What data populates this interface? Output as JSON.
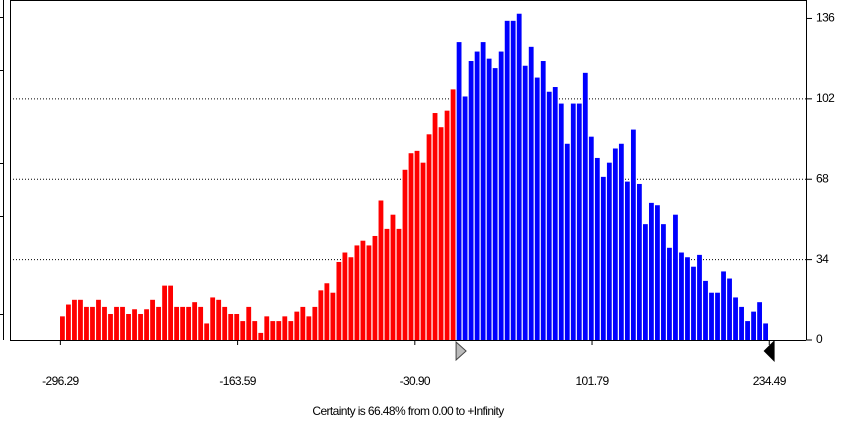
{
  "chart_data": {
    "type": "histogram",
    "caption": "Certainty is 66.48% from 0.00 to +Infinity",
    "certainty_from": 0,
    "colors": [
      "#ff0000",
      "#0000ff"
    ],
    "bins": [
      -297,
      -292.5,
      -288,
      -283.5,
      -279,
      -274.5,
      -270,
      -265.5,
      -261,
      -256.5,
      -252,
      -247.5,
      -243,
      -238.5,
      -234,
      -229.5,
      -225,
      -220.5,
      -216,
      -211.5,
      -207,
      -202.5,
      -198,
      -193.5,
      -189,
      -184.5,
      -180,
      -175.5,
      -171,
      -166.5,
      -162,
      -157.5,
      -153,
      -148.5,
      -144,
      -139.5,
      -135,
      -130.5,
      -126,
      -121.5,
      -117,
      -112.5,
      -108,
      -103.5,
      -99,
      -94.5,
      -90,
      -85.5,
      -81,
      -76.5,
      -72,
      -67.5,
      -63,
      -58.5,
      -54,
      -49.5,
      -45,
      -40.5,
      -36,
      -31.5,
      -27,
      -22.5,
      -18,
      -13.5,
      -9,
      -4.5,
      0,
      4.5,
      9,
      13.5,
      18,
      22.5,
      27,
      31.5,
      36,
      40.5,
      45,
      49.5,
      54,
      58.5,
      63,
      67.5,
      72,
      76.5,
      81,
      85.5,
      90,
      94.5,
      99,
      103.5,
      108,
      112.5,
      117,
      121.5,
      126,
      130.5,
      135,
      139.5,
      144,
      148.5,
      153,
      157.5,
      162,
      166.5,
      171,
      175.5,
      180,
      184.5,
      189,
      193.5,
      198,
      202.5,
      207,
      211.5,
      216,
      220.5,
      225,
      229.5,
      234
    ],
    "values": [
      10,
      15,
      17,
      17,
      14,
      14,
      17,
      14,
      11,
      14,
      14,
      11,
      13,
      11,
      13,
      17,
      14,
      23,
      23,
      14,
      14,
      14,
      16,
      14,
      7,
      18,
      17,
      14,
      11,
      11,
      8,
      14,
      8,
      3,
      10,
      8,
      8,
      10,
      8,
      12,
      14,
      10,
      14,
      21,
      24,
      20,
      33,
      37,
      35,
      40,
      42,
      40,
      44,
      59,
      47,
      53,
      47,
      72,
      79,
      80,
      75,
      87,
      96,
      90,
      97,
      106,
      126,
      103,
      118,
      122,
      126,
      119,
      115,
      122,
      135,
      135,
      138,
      116,
      124,
      111,
      118,
      105,
      107,
      100,
      83,
      100,
      100,
      113,
      86,
      77,
      69,
      75,
      81,
      83,
      67,
      89,
      66,
      49,
      58,
      57,
      49,
      39,
      53,
      37,
      35,
      31,
      36,
      25,
      20,
      20,
      29,
      26,
      18,
      14,
      8,
      12,
      16,
      7
    ],
    "xlim": [
      -334,
      262
    ],
    "xticks": [
      -296.29,
      -163.59,
      {
        "value": -30.9,
        "label": "-30.90"
      },
      101.79,
      234.49
    ],
    "ylim": [
      0,
      140
    ],
    "yticks": [
      0,
      34,
      68,
      102,
      136
    ],
    "grid": true
  }
}
